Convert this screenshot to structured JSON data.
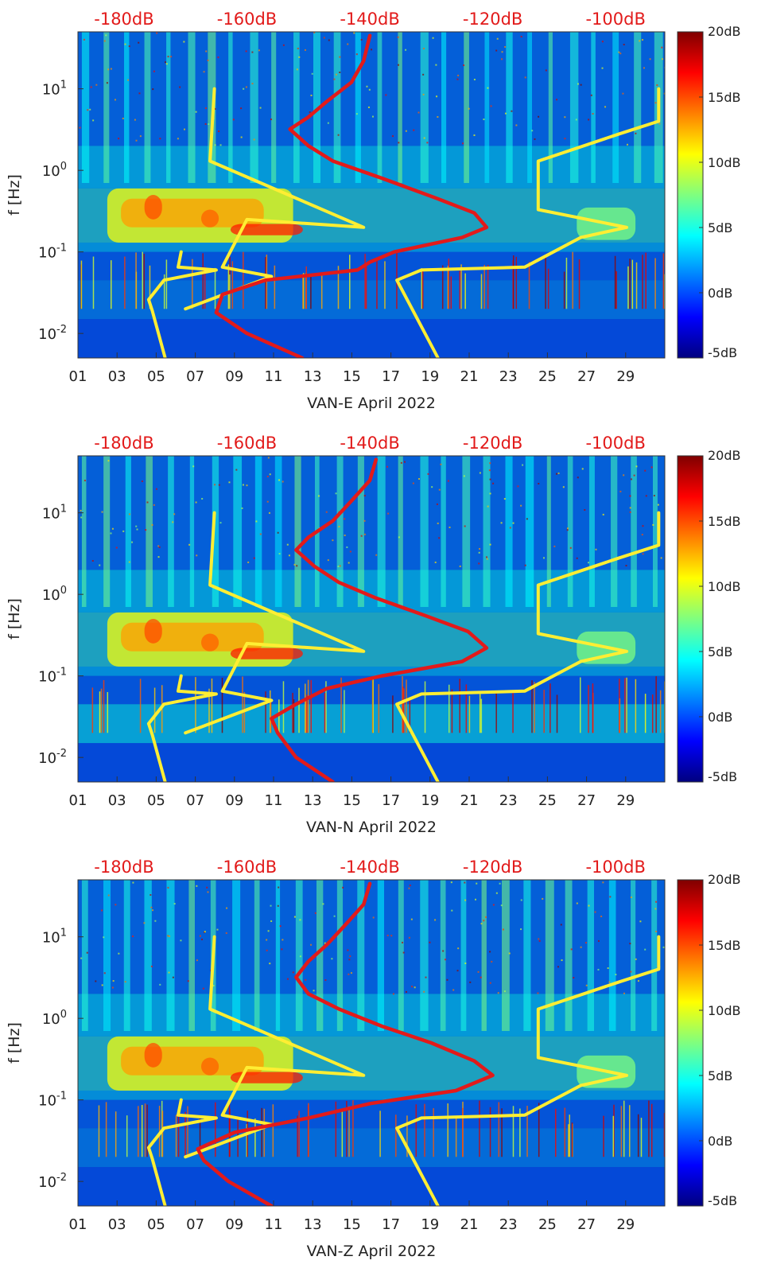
{
  "colors": {
    "noise_model_line": "#ffee33",
    "psd_line": "#e21a1a",
    "top_axis_text": "#e21a1a",
    "spectrogram_base": "#0a2ea8"
  },
  "colormap": [
    "#00007f",
    "#0000ff",
    "#007fff",
    "#00ffff",
    "#7fff7f",
    "#ffff00",
    "#ff7f00",
    "#ff0000",
    "#7f0000"
  ],
  "chart_data": [
    {
      "type": "heatmap",
      "title": "VAN-E April 2022",
      "xlabel": "VAN-E April 2022",
      "ylabel": "f [Hz]",
      "x_ticks": [
        "01",
        "03",
        "05",
        "07",
        "09",
        "11",
        "13",
        "15",
        "17",
        "19",
        "21",
        "23",
        "25",
        "27",
        "29"
      ],
      "xlim": [
        1,
        31
      ],
      "y_scale": "log",
      "ylim": [
        0.005,
        50
      ],
      "y_ticks": [
        {
          "value": 10,
          "base": "10",
          "exp": "1"
        },
        {
          "value": 1,
          "base": "10",
          "exp": "0"
        },
        {
          "value": 0.1,
          "base": "10",
          "exp": "-1"
        },
        {
          "value": 0.01,
          "base": "10",
          "exp": "-2"
        }
      ],
      "top_axis_labels": [
        "-180dB",
        "-160dB",
        "-140dB",
        "-120dB",
        "-100dB"
      ],
      "top_axis_values": [
        -180,
        -160,
        -140,
        -120,
        -100
      ],
      "top_axis_range": [
        -187.5,
        -92
      ],
      "colorbar_labels": [
        "20dB",
        "15dB",
        "10dB",
        "5dB",
        "0dB",
        "-5dB"
      ],
      "colorbar_range": [
        -5,
        20
      ],
      "series": [
        {
          "name": "noise model bounds",
          "color": "#ffee33",
          "segments": [
            [
              [
                -170.0,
                0.02
              ],
              [
                -156.0,
                0.05
              ],
              [
                -164.0,
                0.065
              ],
              [
                -160.0,
                0.25
              ],
              [
                -141.0,
                0.2
              ],
              [
                -166.0,
                1.3
              ],
              [
                -165.3,
                10
              ]
            ],
            [
              [
                -173.3,
                0.005
              ],
              [
                -175.4,
                0.019
              ],
              [
                -176.0,
                0.026
              ],
              [
                -173.5,
                0.045
              ],
              [
                -165.0,
                0.06
              ],
              [
                -171.2,
                0.065
              ],
              [
                -170.7,
                0.1
              ]
            ],
            [
              [
                -128.9,
                0.005
              ],
              [
                -135.6,
                0.045
              ],
              [
                -131.6,
                0.06
              ],
              [
                -114.8,
                0.065
              ],
              [
                -105.7,
                0.15
              ],
              [
                -98.2,
                0.2
              ],
              [
                -112.6,
                0.33
              ],
              [
                -112.6,
                1.3
              ],
              [
                -99.4,
                2.8
              ],
              [
                -93.0,
                4.0
              ],
              [
                -93.0,
                10
              ]
            ]
          ]
        },
        {
          "name": "PSD",
          "color": "#e21a1a",
          "points": [
            [
              -151,
              0.005
            ],
            [
              -160,
              0.01
            ],
            [
              -165,
              0.018
            ],
            [
              -164,
              0.03
            ],
            [
              -157,
              0.045
            ],
            [
              -142,
              0.06
            ],
            [
              -140,
              0.075
            ],
            [
              -136,
              0.1
            ],
            [
              -125,
              0.15
            ],
            [
              -121,
              0.2
            ],
            [
              -123,
              0.3
            ],
            [
              -129,
              0.45
            ],
            [
              -138,
              0.8
            ],
            [
              -146,
              1.3
            ],
            [
              -150,
              2.0
            ],
            [
              -153,
              3.2
            ],
            [
              -150,
              4.5
            ],
            [
              -147,
              7
            ],
            [
              -143,
              12
            ],
            [
              -141,
              22
            ],
            [
              -140,
              45
            ]
          ]
        }
      ]
    },
    {
      "type": "heatmap",
      "title": "VAN-N April 2022",
      "xlabel": "VAN-N April 2022",
      "ylabel": "f [Hz]",
      "x_ticks": [
        "01",
        "03",
        "05",
        "07",
        "09",
        "11",
        "13",
        "15",
        "17",
        "19",
        "21",
        "23",
        "25",
        "27",
        "29"
      ],
      "xlim": [
        1,
        31
      ],
      "y_scale": "log",
      "ylim": [
        0.005,
        50
      ],
      "y_ticks": [
        {
          "value": 10,
          "base": "10",
          "exp": "1"
        },
        {
          "value": 1,
          "base": "10",
          "exp": "0"
        },
        {
          "value": 0.1,
          "base": "10",
          "exp": "-1"
        },
        {
          "value": 0.01,
          "base": "10",
          "exp": "-2"
        }
      ],
      "top_axis_labels": [
        "-180dB",
        "-160dB",
        "-140dB",
        "-120dB",
        "-100dB"
      ],
      "top_axis_values": [
        -180,
        -160,
        -140,
        -120,
        -100
      ],
      "top_axis_range": [
        -187.5,
        -92
      ],
      "colorbar_labels": [
        "20dB",
        "15dB",
        "10dB",
        "5dB",
        "0dB",
        "-5dB"
      ],
      "colorbar_range": [
        -5,
        20
      ],
      "series": [
        {
          "name": "noise model bounds",
          "color": "#ffee33",
          "segments": [
            [
              [
                -170.0,
                0.02
              ],
              [
                -156.0,
                0.05
              ],
              [
                -164.0,
                0.065
              ],
              [
                -160.0,
                0.25
              ],
              [
                -141.0,
                0.2
              ],
              [
                -166.0,
                1.3
              ],
              [
                -165.3,
                10
              ]
            ],
            [
              [
                -173.3,
                0.005
              ],
              [
                -175.4,
                0.019
              ],
              [
                -176.0,
                0.026
              ],
              [
                -173.5,
                0.045
              ],
              [
                -165.0,
                0.06
              ],
              [
                -171.2,
                0.065
              ],
              [
                -170.7,
                0.1
              ]
            ],
            [
              [
                -128.9,
                0.005
              ],
              [
                -135.6,
                0.045
              ],
              [
                -131.6,
                0.06
              ],
              [
                -114.8,
                0.065
              ],
              [
                -105.7,
                0.15
              ],
              [
                -98.2,
                0.2
              ],
              [
                -112.6,
                0.33
              ],
              [
                -112.6,
                1.3
              ],
              [
                -99.4,
                2.8
              ],
              [
                -93.0,
                4.0
              ],
              [
                -93.0,
                10
              ]
            ]
          ]
        },
        {
          "name": "PSD",
          "color": "#e21a1a",
          "points": [
            [
              -146,
              0.005
            ],
            [
              -152,
              0.01
            ],
            [
              -155,
              0.02
            ],
            [
              -156,
              0.03
            ],
            [
              -152,
              0.045
            ],
            [
              -147,
              0.07
            ],
            [
              -138,
              0.1
            ],
            [
              -125,
              0.15
            ],
            [
              -121,
              0.22
            ],
            [
              -124,
              0.35
            ],
            [
              -131,
              0.55
            ],
            [
              -139,
              0.9
            ],
            [
              -145,
              1.4
            ],
            [
              -149,
              2.2
            ],
            [
              -152,
              3.5
            ],
            [
              -150,
              5
            ],
            [
              -146,
              8
            ],
            [
              -143,
              14
            ],
            [
              -140,
              25
            ],
            [
              -139,
              45
            ]
          ]
        }
      ]
    },
    {
      "type": "heatmap",
      "title": "VAN-Z April 2022",
      "xlabel": "VAN-Z April 2022",
      "ylabel": "f [Hz]",
      "x_ticks": [
        "01",
        "03",
        "05",
        "07",
        "09",
        "11",
        "13",
        "15",
        "17",
        "19",
        "21",
        "23",
        "25",
        "27",
        "29"
      ],
      "xlim": [
        1,
        31
      ],
      "y_scale": "log",
      "ylim": [
        0.005,
        50
      ],
      "y_ticks": [
        {
          "value": 10,
          "base": "10",
          "exp": "1"
        },
        {
          "value": 1,
          "base": "10",
          "exp": "0"
        },
        {
          "value": 0.1,
          "base": "10",
          "exp": "-1"
        },
        {
          "value": 0.01,
          "base": "10",
          "exp": "-2"
        }
      ],
      "top_axis_labels": [
        "-180dB",
        "-160dB",
        "-140dB",
        "-120dB",
        "-100dB"
      ],
      "top_axis_values": [
        -180,
        -160,
        -140,
        -120,
        -100
      ],
      "top_axis_range": [
        -187.5,
        -92
      ],
      "colorbar_labels": [
        "20dB",
        "15dB",
        "10dB",
        "5dB",
        "0dB",
        "-5dB"
      ],
      "colorbar_range": [
        -5,
        20
      ],
      "series": [
        {
          "name": "noise model bounds",
          "color": "#ffee33",
          "segments": [
            [
              [
                -170.0,
                0.02
              ],
              [
                -156.0,
                0.05
              ],
              [
                -164.0,
                0.065
              ],
              [
                -160.0,
                0.25
              ],
              [
                -141.0,
                0.2
              ],
              [
                -166.0,
                1.3
              ],
              [
                -165.3,
                10
              ]
            ],
            [
              [
                -173.3,
                0.005
              ],
              [
                -175.4,
                0.019
              ],
              [
                -176.0,
                0.026
              ],
              [
                -173.5,
                0.045
              ],
              [
                -165.0,
                0.06
              ],
              [
                -171.2,
                0.065
              ],
              [
                -170.7,
                0.1
              ]
            ],
            [
              [
                -128.9,
                0.005
              ],
              [
                -135.6,
                0.045
              ],
              [
                -131.6,
                0.06
              ],
              [
                -114.8,
                0.065
              ],
              [
                -105.7,
                0.15
              ],
              [
                -98.2,
                0.2
              ],
              [
                -112.6,
                0.33
              ],
              [
                -112.6,
                1.3
              ],
              [
                -99.4,
                2.8
              ],
              [
                -93.0,
                4.0
              ],
              [
                -93.0,
                10
              ]
            ]
          ]
        },
        {
          "name": "PSD",
          "color": "#e21a1a",
          "points": [
            [
              -156,
              0.005
            ],
            [
              -163,
              0.01
            ],
            [
              -167,
              0.018
            ],
            [
              -168,
              0.025
            ],
            [
              -162,
              0.04
            ],
            [
              -150,
              0.06
            ],
            [
              -140,
              0.09
            ],
            [
              -126,
              0.13
            ],
            [
              -120,
              0.2
            ],
            [
              -123,
              0.3
            ],
            [
              -130,
              0.5
            ],
            [
              -138,
              0.8
            ],
            [
              -145,
              1.3
            ],
            [
              -150,
              2
            ],
            [
              -152,
              3.2
            ],
            [
              -150,
              5
            ],
            [
              -147,
              8
            ],
            [
              -144,
              14
            ],
            [
              -141,
              25
            ],
            [
              -140,
              45
            ]
          ]
        }
      ]
    }
  ]
}
